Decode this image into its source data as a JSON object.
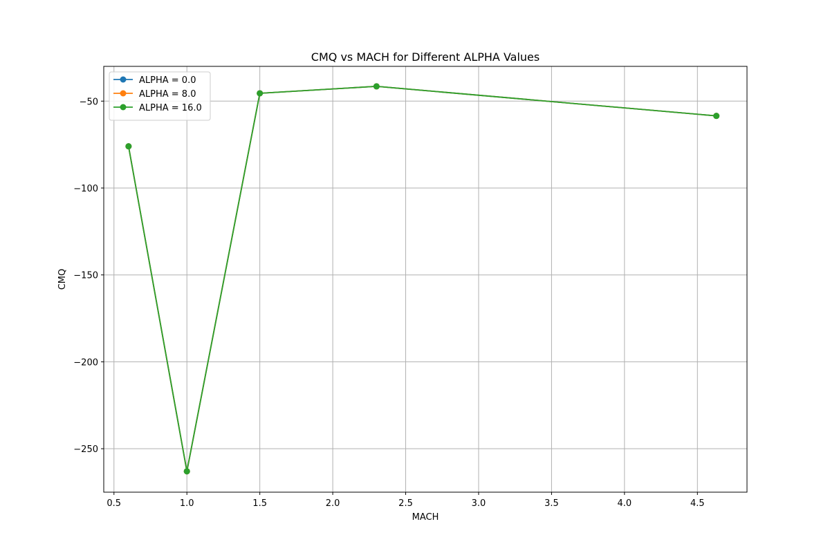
{
  "chart_data": {
    "type": "line",
    "title": "CMQ vs MACH for Different ALPHA Values",
    "xlabel": "MACH",
    "ylabel": "CMQ",
    "xlim": [
      0.43,
      4.84
    ],
    "ylim": [
      -275,
      -30
    ],
    "xticks": [
      0.5,
      1.0,
      1.5,
      2.0,
      2.5,
      3.0,
      3.5,
      4.0,
      4.5
    ],
    "xtick_labels": [
      "0.5",
      "1.0",
      "1.5",
      "2.0",
      "2.5",
      "3.0",
      "3.5",
      "4.0",
      "4.5"
    ],
    "yticks": [
      -250,
      -200,
      -150,
      -100,
      -50
    ],
    "ytick_labels": [
      "−250",
      "−200",
      "−150",
      "−100",
      "−50"
    ],
    "grid": true,
    "legend_position": "top-left",
    "x": [
      0.6,
      1.0,
      1.5,
      2.3,
      4.63
    ],
    "series": [
      {
        "name": "ALPHA = 0.0",
        "color": "#1f77b4",
        "values": [
          -76,
          -263,
          -45.5,
          -41.5,
          -58.5
        ]
      },
      {
        "name": "ALPHA = 8.0",
        "color": "#ff7f0e",
        "values": [
          -76,
          -263,
          -45.5,
          -41.5,
          -58.5
        ]
      },
      {
        "name": "ALPHA = 16.0",
        "color": "#2ca02c",
        "values": [
          -76,
          -263,
          -45.5,
          -41.5,
          -58.5
        ]
      }
    ]
  }
}
